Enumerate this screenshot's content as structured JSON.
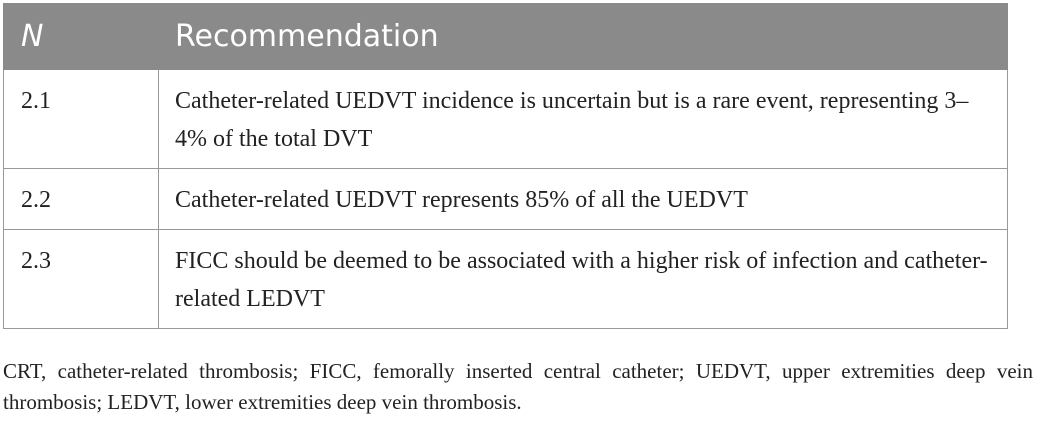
{
  "table": {
    "header": [
      "N",
      "Recommendation"
    ],
    "rows": [
      [
        "2.1",
        "Catheter-related UEDVT incidence is uncertain but is a rare event, representing 3–4% of the total DVT"
      ],
      [
        "2.2",
        "Catheter-related UEDVT represents 85% of all the UEDVT"
      ],
      [
        "2.3",
        "FICC should be deemed to be associated with a higher risk of infection and catheter-related LEDVT"
      ]
    ]
  },
  "footnote": "CRT, catheter-related thrombosis; FICC, femorally inserted central catheter; UEDVT, upper extremities deep vein thrombosis; LEDVT, lower extremities deep vein thrombosis."
}
